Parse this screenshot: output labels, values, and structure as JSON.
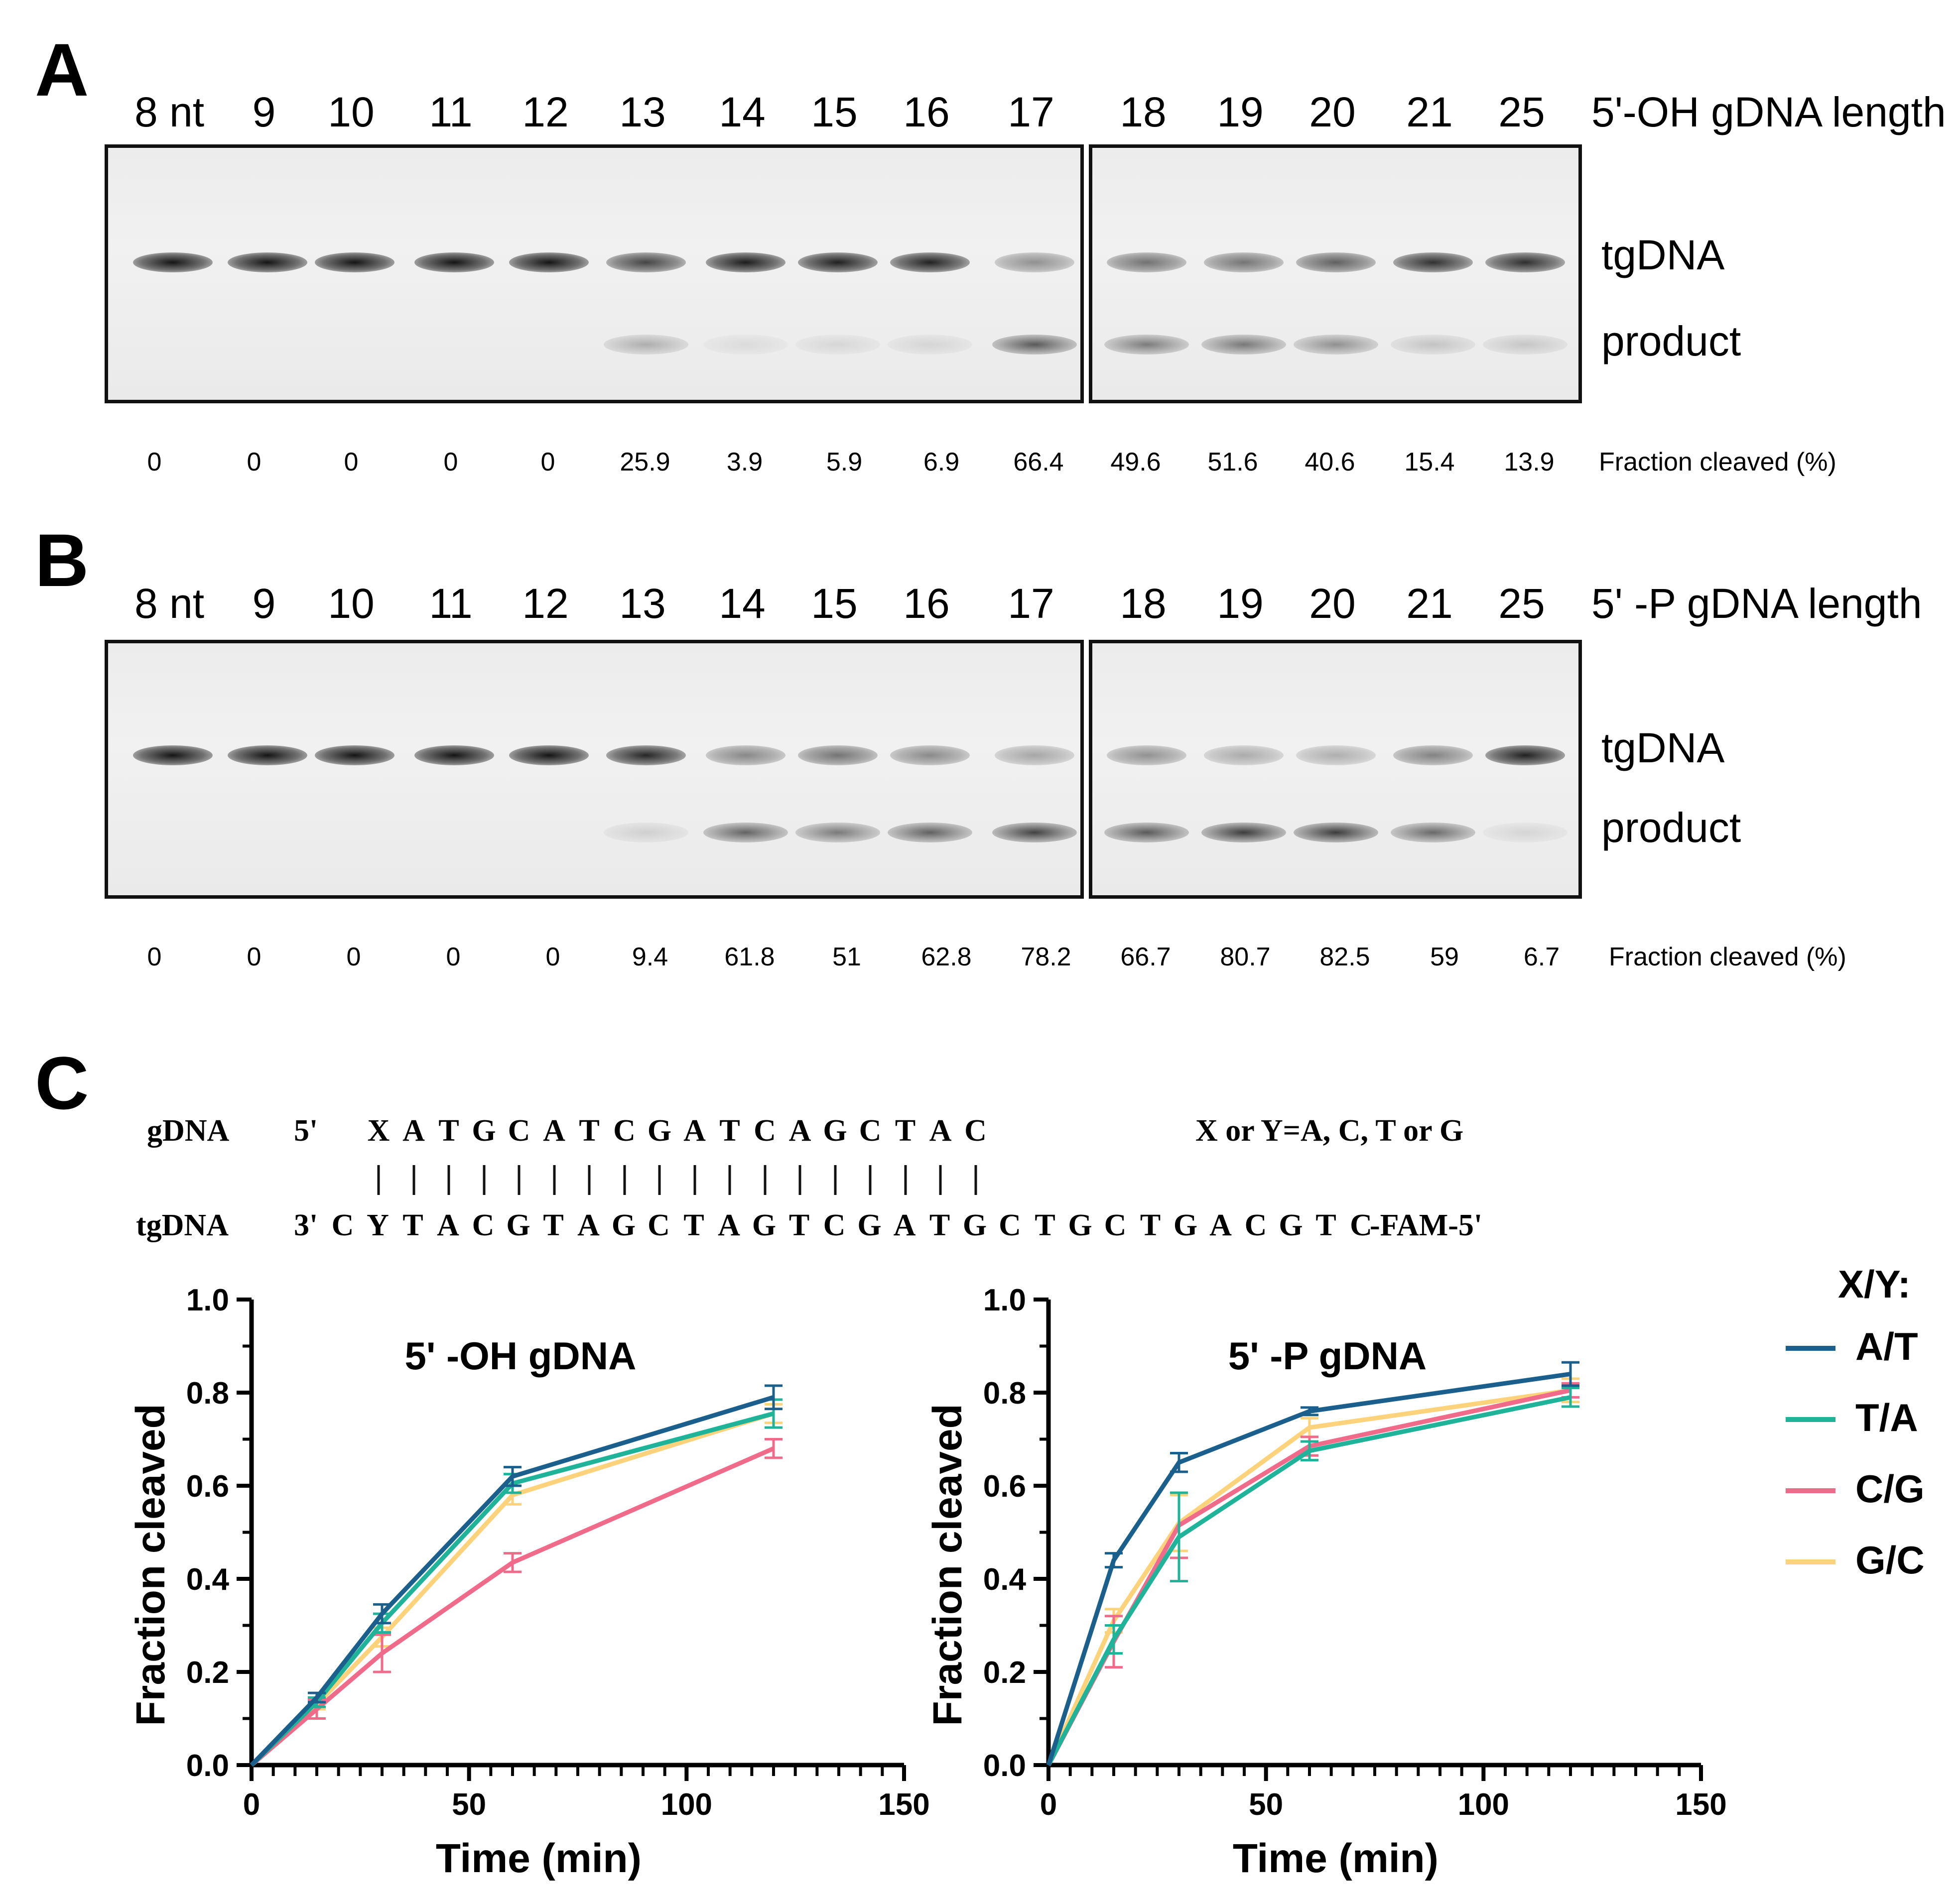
{
  "panels": {
    "A": {
      "letter": "A",
      "header_title": "5'-OH gDNA length",
      "lane_labels": [
        "8 nt",
        "9",
        "10",
        "11",
        "12",
        "13",
        "14",
        "15",
        "16",
        "17",
        "18",
        "19",
        "20",
        "21",
        "25"
      ],
      "band_labels": {
        "top": "tgDNA",
        "bottom": "product"
      },
      "fraction_title": "Fraction cleaved  (%)",
      "fractions": [
        "0",
        "0",
        "0",
        "0",
        "0",
        "25.9",
        "3.9",
        "5.9",
        "6.9",
        "66.4",
        "49.6",
        "51.6",
        "40.6",
        "15.4",
        "13.9"
      ]
    },
    "B": {
      "letter": "B",
      "header_title": "5' -P gDNA length",
      "lane_labels": [
        "8 nt",
        "9",
        "10",
        "11",
        "12",
        "13",
        "14",
        "15",
        "16",
        "17",
        "18",
        "19",
        "20",
        "21",
        "25"
      ],
      "band_labels": {
        "top": "tgDNA",
        "bottom": "product"
      },
      "fraction_title": "Fraction cleaved  (%)",
      "fractions": [
        "0",
        "0",
        "0",
        "0",
        "0",
        "9.4",
        "61.8",
        "51",
        "62.8",
        "78.2",
        "66.7",
        "80.7",
        "82.5",
        "59",
        "6.7"
      ]
    },
    "C": {
      "letter": "C",
      "gdna_label": "gDNA",
      "gdna_end": "5'",
      "gdna_seq": [
        "X",
        "A",
        "T",
        "G",
        "C",
        "A",
        "T",
        "C",
        "G",
        "A",
        "T",
        "C",
        "A",
        "G",
        "C",
        "T",
        "A",
        "C"
      ],
      "xy_note": "X or Y=A, C, T or G",
      "tgdna_label": "tgDNA",
      "tgdna_end": "3'",
      "tgdna_seq": [
        "C",
        "Y",
        "T",
        "A",
        "C",
        "G",
        "T",
        "A",
        "G",
        "C",
        "T",
        "A",
        "G",
        "T",
        "C",
        "G",
        "A",
        "T",
        "G",
        "C",
        "T",
        "G",
        "C",
        "T",
        "G",
        "A",
        "C",
        "G",
        "T",
        "C"
      ],
      "tgdna_tail": "-FAM-5'"
    }
  },
  "legend": {
    "title": "X/Y:",
    "items": [
      {
        "label": "A/T",
        "color": "#1b5f8c"
      },
      {
        "label": "T/A",
        "color": "#1fb39a"
      },
      {
        "label": "C/G",
        "color": "#f06a8a"
      },
      {
        "label": "G/C",
        "color": "#fcd27b"
      }
    ]
  },
  "chart_data": [
    {
      "type": "line",
      "title": "5' -OH gDNA",
      "xlabel": "Time (min)",
      "ylabel": "Fraction cleaved",
      "xlim": [
        0,
        150
      ],
      "ylim": [
        0,
        1.0
      ],
      "xticks": [
        "0",
        "50",
        "100",
        "150"
      ],
      "yticks": [
        "0.0",
        "0.2",
        "0.4",
        "0.6",
        "0.8",
        "1.0"
      ],
      "x": [
        0,
        15,
        30,
        60,
        120
      ],
      "series": [
        {
          "name": "A/T",
          "color": "#1b5f8c",
          "values": [
            0,
            0.145,
            0.325,
            0.62,
            0.79
          ],
          "errors": [
            0,
            0.01,
            0.02,
            0.02,
            0.025
          ]
        },
        {
          "name": "T/A",
          "color": "#1fb39a",
          "values": [
            0,
            0.135,
            0.305,
            0.605,
            0.755
          ],
          "errors": [
            0,
            0.01,
            0.02,
            0.02,
            0.03
          ]
        },
        {
          "name": "C/G",
          "color": "#f06a8a",
          "values": [
            0,
            0.12,
            0.24,
            0.435,
            0.68
          ],
          "errors": [
            0,
            0.02,
            0.04,
            0.02,
            0.02
          ]
        },
        {
          "name": "G/C",
          "color": "#fcd27b",
          "values": [
            0,
            0.13,
            0.275,
            0.58,
            0.755
          ],
          "errors": [
            0,
            0.01,
            0.02,
            0.02,
            0.02
          ]
        }
      ]
    },
    {
      "type": "line",
      "title": "5' -P gDNA",
      "xlabel": "Time (min)",
      "ylabel": "Fraction cleaved",
      "xlim": [
        0,
        150
      ],
      "ylim": [
        0,
        1.0
      ],
      "xticks": [
        "0",
        "50",
        "100",
        "150"
      ],
      "yticks": [
        "0.0",
        "0.2",
        "0.4",
        "0.6",
        "0.8",
        "1.0"
      ],
      "x": [
        0,
        15,
        30,
        60,
        120
      ],
      "series": [
        {
          "name": "A/T",
          "color": "#1b5f8c",
          "values": [
            0,
            0.44,
            0.65,
            0.76,
            0.84
          ],
          "errors": [
            0,
            0.015,
            0.02,
            0.008,
            0.025
          ]
        },
        {
          "name": "T/A",
          "color": "#1fb39a",
          "values": [
            0,
            0.27,
            0.49,
            0.675,
            0.79
          ],
          "errors": [
            0,
            0.03,
            0.095,
            0.02,
            0.02
          ]
        },
        {
          "name": "C/G",
          "color": "#f06a8a",
          "values": [
            0,
            0.265,
            0.515,
            0.685,
            0.805
          ],
          "errors": [
            0,
            0.055,
            0.07,
            0.02,
            0.015
          ]
        },
        {
          "name": "G/C",
          "color": "#fcd27b",
          "values": [
            0,
            0.31,
            0.52,
            0.725,
            0.805
          ],
          "errors": [
            0,
            0.025,
            0.06,
            0.02,
            0.025
          ]
        }
      ]
    }
  ]
}
